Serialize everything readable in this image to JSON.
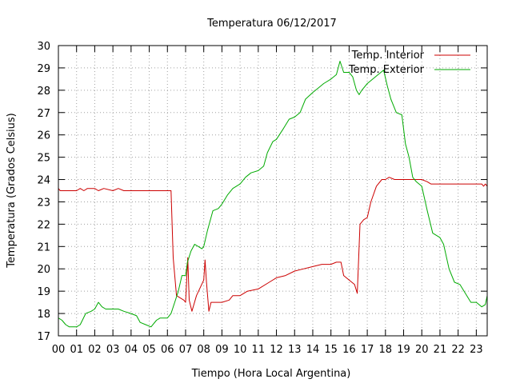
{
  "chart_data": {
    "type": "line",
    "title": "Temperatura 06/12/2017",
    "xlabel": "Tiempo (Hora Local Argentina)",
    "ylabel": "Temperatura (Grados Celsius)",
    "xlim": [
      0,
      23.6
    ],
    "ylim": [
      17,
      30
    ],
    "x_ticks": [
      {
        "value": 0,
        "label": "00"
      },
      {
        "value": 1,
        "label": "01"
      },
      {
        "value": 2,
        "label": "02"
      },
      {
        "value": 3,
        "label": "03"
      },
      {
        "value": 4,
        "label": "04"
      },
      {
        "value": 5,
        "label": "05"
      },
      {
        "value": 6,
        "label": "06"
      },
      {
        "value": 7,
        "label": "07"
      },
      {
        "value": 8,
        "label": "08"
      },
      {
        "value": 9,
        "label": "09"
      },
      {
        "value": 10,
        "label": "10"
      },
      {
        "value": 11,
        "label": "11"
      },
      {
        "value": 12,
        "label": "12"
      },
      {
        "value": 13,
        "label": "13"
      },
      {
        "value": 14,
        "label": "14"
      },
      {
        "value": 15,
        "label": "15"
      },
      {
        "value": 16,
        "label": "16"
      },
      {
        "value": 17,
        "label": "17"
      },
      {
        "value": 18,
        "label": "18"
      },
      {
        "value": 19,
        "label": "19"
      },
      {
        "value": 20,
        "label": "20"
      },
      {
        "value": 21,
        "label": "21"
      },
      {
        "value": 22,
        "label": "22"
      },
      {
        "value": 23,
        "label": "23"
      }
    ],
    "y_ticks": [
      {
        "value": 17,
        "label": "17"
      },
      {
        "value": 18,
        "label": "18"
      },
      {
        "value": 19,
        "label": "19"
      },
      {
        "value": 20,
        "label": "20"
      },
      {
        "value": 21,
        "label": "21"
      },
      {
        "value": 22,
        "label": "22"
      },
      {
        "value": 23,
        "label": "23"
      },
      {
        "value": 24,
        "label": "24"
      },
      {
        "value": 25,
        "label": "25"
      },
      {
        "value": 26,
        "label": "26"
      },
      {
        "value": 27,
        "label": "27"
      },
      {
        "value": 28,
        "label": "28"
      },
      {
        "value": 29,
        "label": "29"
      },
      {
        "value": 30,
        "label": "30"
      }
    ],
    "grid": true,
    "legend_position": "top-right",
    "series": [
      {
        "name": "Temp. Interior",
        "color": "#cc0000",
        "points": [
          [
            0,
            23.6
          ],
          [
            0.1,
            23.5
          ],
          [
            0.5,
            23.5
          ],
          [
            1.0,
            23.5
          ],
          [
            1.2,
            23.6
          ],
          [
            1.4,
            23.5
          ],
          [
            1.6,
            23.6
          ],
          [
            2.0,
            23.6
          ],
          [
            2.2,
            23.5
          ],
          [
            2.5,
            23.6
          ],
          [
            3.0,
            23.5
          ],
          [
            3.3,
            23.6
          ],
          [
            3.6,
            23.5
          ],
          [
            4.0,
            23.5
          ],
          [
            4.3,
            23.5
          ],
          [
            5.0,
            23.5
          ],
          [
            5.5,
            23.5
          ],
          [
            6.0,
            23.5
          ],
          [
            6.2,
            23.5
          ],
          [
            6.32,
            20.5
          ],
          [
            6.5,
            18.8
          ],
          [
            6.9,
            18.6
          ],
          [
            7.0,
            18.5
          ],
          [
            7.12,
            20.5
          ],
          [
            7.2,
            18.6
          ],
          [
            7.35,
            18.1
          ],
          [
            7.6,
            18.8
          ],
          [
            8.0,
            19.5
          ],
          [
            8.07,
            20.4
          ],
          [
            8.15,
            19.4
          ],
          [
            8.28,
            18.1
          ],
          [
            8.4,
            18.5
          ],
          [
            9.0,
            18.5
          ],
          [
            9.4,
            18.6
          ],
          [
            9.6,
            18.8
          ],
          [
            10.0,
            18.8
          ],
          [
            10.4,
            19.0
          ],
          [
            11.0,
            19.1
          ],
          [
            11.6,
            19.4
          ],
          [
            12.0,
            19.6
          ],
          [
            12.5,
            19.7
          ],
          [
            13.0,
            19.9
          ],
          [
            13.5,
            20.0
          ],
          [
            14.0,
            20.1
          ],
          [
            14.5,
            20.2
          ],
          [
            15.0,
            20.2
          ],
          [
            15.3,
            20.3
          ],
          [
            15.55,
            20.3
          ],
          [
            15.7,
            19.7
          ],
          [
            16.0,
            19.5
          ],
          [
            16.3,
            19.3
          ],
          [
            16.45,
            18.9
          ],
          [
            16.6,
            22.0
          ],
          [
            16.8,
            22.2
          ],
          [
            17.0,
            22.3
          ],
          [
            17.2,
            23.0
          ],
          [
            17.5,
            23.7
          ],
          [
            17.8,
            24.0
          ],
          [
            18.0,
            24.0
          ],
          [
            18.2,
            24.1
          ],
          [
            18.5,
            24.0
          ],
          [
            19.0,
            24.0
          ],
          [
            19.5,
            24.0
          ],
          [
            20.0,
            24.0
          ],
          [
            20.3,
            23.9
          ],
          [
            20.5,
            23.8
          ],
          [
            21.0,
            23.8
          ],
          [
            21.5,
            23.8
          ],
          [
            22.0,
            23.8
          ],
          [
            22.5,
            23.8
          ],
          [
            23.0,
            23.8
          ],
          [
            23.3,
            23.8
          ],
          [
            23.4,
            23.7
          ],
          [
            23.5,
            23.8
          ],
          [
            23.6,
            23.7
          ]
        ]
      },
      {
        "name": "Temp. Exterior",
        "color": "#00aa00",
        "points": [
          [
            0,
            17.8
          ],
          [
            0.2,
            17.7
          ],
          [
            0.4,
            17.5
          ],
          [
            0.6,
            17.4
          ],
          [
            1.0,
            17.4
          ],
          [
            1.2,
            17.5
          ],
          [
            1.5,
            18.0
          ],
          [
            1.8,
            18.1
          ],
          [
            2.0,
            18.2
          ],
          [
            2.2,
            18.5
          ],
          [
            2.4,
            18.3
          ],
          [
            2.6,
            18.2
          ],
          [
            3.0,
            18.2
          ],
          [
            3.3,
            18.2
          ],
          [
            3.6,
            18.1
          ],
          [
            4.0,
            18.0
          ],
          [
            4.3,
            17.9
          ],
          [
            4.5,
            17.6
          ],
          [
            4.8,
            17.5
          ],
          [
            5.1,
            17.4
          ],
          [
            5.4,
            17.7
          ],
          [
            5.6,
            17.8
          ],
          [
            6.0,
            17.8
          ],
          [
            6.2,
            18.0
          ],
          [
            6.4,
            18.5
          ],
          [
            6.6,
            19.0
          ],
          [
            6.8,
            19.7
          ],
          [
            7.0,
            19.7
          ],
          [
            7.1,
            20.3
          ],
          [
            7.3,
            20.8
          ],
          [
            7.5,
            21.1
          ],
          [
            7.7,
            21.0
          ],
          [
            7.9,
            20.9
          ],
          [
            8.0,
            21.0
          ],
          [
            8.2,
            21.7
          ],
          [
            8.5,
            22.6
          ],
          [
            8.8,
            22.7
          ],
          [
            9.0,
            22.9
          ],
          [
            9.3,
            23.3
          ],
          [
            9.6,
            23.6
          ],
          [
            10.0,
            23.8
          ],
          [
            10.3,
            24.1
          ],
          [
            10.6,
            24.3
          ],
          [
            11.0,
            24.4
          ],
          [
            11.3,
            24.6
          ],
          [
            11.5,
            25.2
          ],
          [
            11.8,
            25.7
          ],
          [
            12.0,
            25.8
          ],
          [
            12.4,
            26.3
          ],
          [
            12.7,
            26.7
          ],
          [
            13.0,
            26.8
          ],
          [
            13.3,
            27.0
          ],
          [
            13.6,
            27.6
          ],
          [
            14.0,
            27.9
          ],
          [
            14.3,
            28.1
          ],
          [
            14.6,
            28.3
          ],
          [
            15.0,
            28.5
          ],
          [
            15.3,
            28.7
          ],
          [
            15.5,
            29.3
          ],
          [
            15.7,
            28.8
          ],
          [
            16.0,
            28.8
          ],
          [
            16.2,
            28.6
          ],
          [
            16.4,
            28.0
          ],
          [
            16.55,
            27.8
          ],
          [
            16.7,
            28.0
          ],
          [
            17.0,
            28.3
          ],
          [
            17.3,
            28.5
          ],
          [
            17.6,
            28.7
          ],
          [
            17.9,
            28.9
          ],
          [
            18.1,
            28.2
          ],
          [
            18.3,
            27.6
          ],
          [
            18.6,
            27.0
          ],
          [
            18.9,
            26.9
          ],
          [
            19.1,
            25.6
          ],
          [
            19.3,
            25.0
          ],
          [
            19.5,
            24.1
          ],
          [
            19.7,
            23.9
          ],
          [
            20.0,
            23.7
          ],
          [
            20.3,
            22.6
          ],
          [
            20.6,
            21.6
          ],
          [
            21.0,
            21.4
          ],
          [
            21.2,
            21.1
          ],
          [
            21.5,
            20.0
          ],
          [
            21.8,
            19.4
          ],
          [
            22.1,
            19.3
          ],
          [
            22.4,
            18.9
          ],
          [
            22.7,
            18.5
          ],
          [
            23.0,
            18.5
          ],
          [
            23.3,
            18.3
          ],
          [
            23.5,
            18.4
          ],
          [
            23.6,
            18.8
          ]
        ]
      }
    ]
  }
}
